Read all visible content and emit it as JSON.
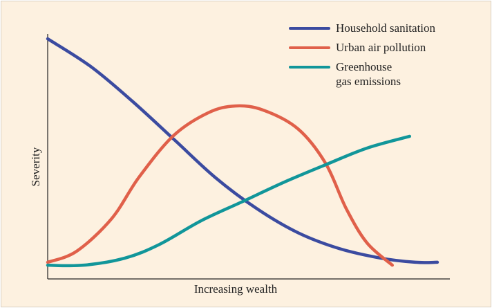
{
  "chart_data": {
    "type": "line",
    "xlabel": "Increasing wealth",
    "ylabel": "Severity",
    "xlim": [
      0,
      100
    ],
    "ylim": [
      0,
      100
    ],
    "series": [
      {
        "name": "Household sanitation",
        "color": "#3b4ba0",
        "x": [
          0,
          10.7,
          21.0,
          31.3,
          41.6,
          51.9,
          62.2,
          72.5,
          82.8,
          91.4,
          96.9
        ],
        "values": [
          98.0,
          86.7,
          72.6,
          57.1,
          41.5,
          28.8,
          18.9,
          12.4,
          8.5,
          6.8,
          6.8
        ]
      },
      {
        "name": "Urban air pollution",
        "color": "#e0604a",
        "x": [
          0,
          7.2,
          15.9,
          22.7,
          31.3,
          39.9,
          46.7,
          53.6,
          62.2,
          69.1,
          74.2,
          79.4,
          85.7
        ],
        "values": [
          6.8,
          11.3,
          24.6,
          41.5,
          58.5,
          67.8,
          70.6,
          68.9,
          61.3,
          47.2,
          28.8,
          14.7,
          5.6
        ]
      },
      {
        "name": "Greenhouse gas emissions",
        "color": "#11969a",
        "x": [
          0,
          8.9,
          19.2,
          27.8,
          38.1,
          48.5,
          58.8,
          69.1,
          79.4,
          90.0
        ],
        "values": [
          5.6,
          5.6,
          8.5,
          14.1,
          23.7,
          31.6,
          39.5,
          46.6,
          53.4,
          58.2
        ]
      }
    ]
  }
}
